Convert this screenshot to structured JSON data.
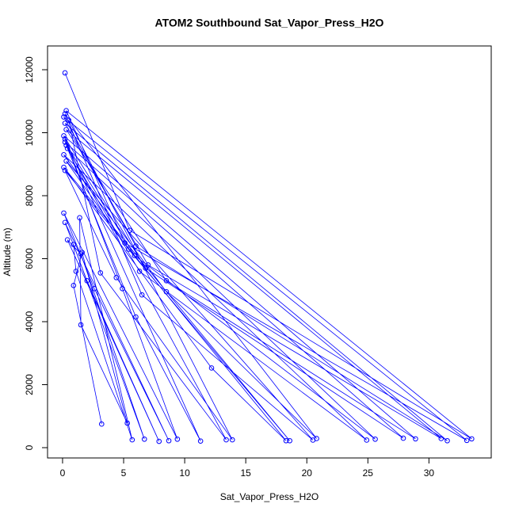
{
  "chart_data": {
    "type": "line",
    "markers": true,
    "title": "ATOM2 Southbound Sat_Vapor_Press_H2O",
    "x_label": "Sat_Vapor_Press_H2O",
    "y_label": "Altitude (m)",
    "color": "#0000ff",
    "x": [
      0.2,
      5.5,
      33.5,
      0.3,
      5.1,
      33.1,
      0.1,
      6.0,
      31.5,
      0.2,
      7.0,
      31.0,
      0.3,
      8.5,
      28.9,
      0.1,
      6.8,
      27.9,
      0.2,
      5.9,
      25.6,
      0.4,
      6.3,
      24.9,
      0.1,
      8.5,
      20.8,
      0.2,
      6.5,
      20.5,
      0.3,
      5.4,
      18.6,
      0.1,
      12.2,
      18.3,
      0.2,
      4.4,
      13.9,
      0.5,
      3.1,
      13.4,
      0.3,
      6.0,
      11.3,
      0.2,
      4.9,
      9.4,
      0.1,
      2.6,
      8.7,
      0.2,
      2.0,
      7.9,
      0.4,
      1.5,
      6.7,
      0.9,
      1.1,
      5.7,
      1.4,
      1.5,
      5.3,
      1.6,
      0.9,
      3.2
    ],
    "values": [
      11900,
      6900,
      280,
      10700,
      6500,
      230,
      10500,
      6400,
      220,
      10300,
      5800,
      290,
      10100,
      5300,
      280,
      9900,
      5700,
      300,
      9700,
      6100,
      270,
      9500,
      5600,
      240,
      9300,
      4950,
      290,
      10600,
      4850,
      240,
      9100,
      6300,
      220,
      8900,
      2530,
      220,
      8800,
      5400,
      250,
      10400,
      5550,
      250,
      9600,
      4150,
      210,
      9800,
      5050,
      270,
      7450,
      5050,
      220,
      7150,
      5300,
      200,
      6600,
      6150,
      270,
      6450,
      5600,
      250,
      7300,
      3900,
      780,
      6200,
      5150,
      750
    ],
    "xlim": [
      -1.23,
      35.1
    ],
    "ylim": [
      -327,
      12755
    ],
    "xticks": [
      0,
      5,
      10,
      15,
      20,
      25,
      30
    ],
    "yticks": [
      0,
      2000,
      4000,
      6000,
      8000,
      10000,
      12000
    ]
  }
}
